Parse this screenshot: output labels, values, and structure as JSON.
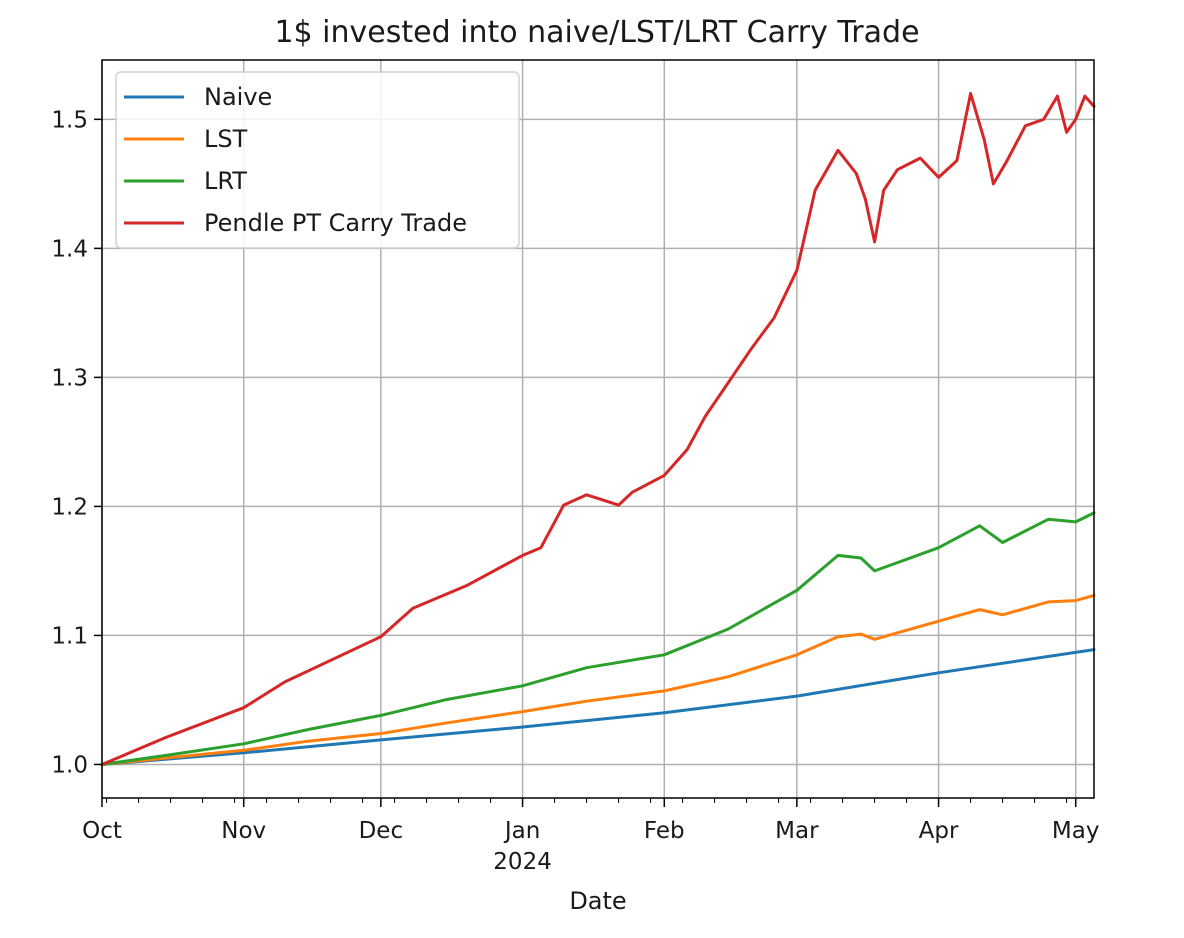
{
  "chart_data": {
    "type": "line",
    "title": "1$ invested into naive/LST/LRT Carry Trade",
    "xlabel": "Date",
    "ylabel": "",
    "x_start": "2023-10-01",
    "x_end": "2024-05-05",
    "xlim": [
      "2023-10-01",
      "2024-05-05"
    ],
    "ylim": [
      0.974,
      1.546
    ],
    "x_ticks": [
      {
        "date": "2023-10-01",
        "label": "Oct",
        "sublabel": ""
      },
      {
        "date": "2023-11-01",
        "label": "Nov",
        "sublabel": ""
      },
      {
        "date": "2023-12-01",
        "label": "Dec",
        "sublabel": ""
      },
      {
        "date": "2024-01-01",
        "label": "Jan",
        "sublabel": "2024"
      },
      {
        "date": "2024-02-01",
        "label": "Feb",
        "sublabel": ""
      },
      {
        "date": "2024-03-01",
        "label": "Mar",
        "sublabel": ""
      },
      {
        "date": "2024-04-01",
        "label": "Apr",
        "sublabel": ""
      },
      {
        "date": "2024-05-01",
        "label": "May",
        "sublabel": ""
      }
    ],
    "y_ticks": [
      1.0,
      1.1,
      1.2,
      1.3,
      1.4,
      1.5
    ],
    "y_tick_labels": [
      "1.0",
      "1.1",
      "1.2",
      "1.3",
      "1.4",
      "1.5"
    ],
    "grid": true,
    "legend_position": "top-left",
    "series": [
      {
        "name": "Naive",
        "color": "#1f77b4",
        "x": [
          "2023-10-01",
          "2023-11-01",
          "2023-12-01",
          "2024-01-01",
          "2024-02-01",
          "2024-03-01",
          "2024-04-01",
          "2024-05-05"
        ],
        "y": [
          1.0,
          1.009,
          1.019,
          1.029,
          1.04,
          1.053,
          1.071,
          1.089
        ]
      },
      {
        "name": "LST",
        "color": "#ff7f0e",
        "x": [
          "2023-10-01",
          "2023-10-15",
          "2023-11-01",
          "2023-11-15",
          "2023-12-01",
          "2023-12-15",
          "2024-01-01",
          "2024-01-15",
          "2024-02-01",
          "2024-02-15",
          "2024-03-01",
          "2024-03-10",
          "2024-03-15",
          "2024-03-18",
          "2024-04-01",
          "2024-04-10",
          "2024-04-15",
          "2024-04-25",
          "2024-05-01",
          "2024-05-05"
        ],
        "y": [
          1.0,
          1.005,
          1.011,
          1.018,
          1.024,
          1.032,
          1.041,
          1.049,
          1.057,
          1.068,
          1.085,
          1.099,
          1.101,
          1.097,
          1.111,
          1.12,
          1.116,
          1.126,
          1.127,
          1.131
        ]
      },
      {
        "name": "LRT",
        "color": "#2ca02c",
        "x": [
          "2023-10-01",
          "2023-10-15",
          "2023-11-01",
          "2023-11-15",
          "2023-12-01",
          "2023-12-15",
          "2024-01-01",
          "2024-01-15",
          "2024-02-01",
          "2024-02-15",
          "2024-03-01",
          "2024-03-10",
          "2024-03-15",
          "2024-03-18",
          "2024-04-01",
          "2024-04-10",
          "2024-04-15",
          "2024-04-25",
          "2024-05-01",
          "2024-05-05"
        ],
        "y": [
          1.0,
          1.007,
          1.016,
          1.027,
          1.038,
          1.05,
          1.061,
          1.075,
          1.085,
          1.105,
          1.135,
          1.162,
          1.16,
          1.15,
          1.168,
          1.185,
          1.172,
          1.19,
          1.188,
          1.195
        ]
      },
      {
        "name": "Pendle PT Carry Trade",
        "color": "#d62728",
        "x": [
          "2023-10-01",
          "2023-10-15",
          "2023-11-01",
          "2023-11-10",
          "2023-12-01",
          "2023-12-08",
          "2023-12-20",
          "2024-01-01",
          "2024-01-05",
          "2024-01-10",
          "2024-01-15",
          "2024-01-22",
          "2024-01-25",
          "2024-02-01",
          "2024-02-06",
          "2024-02-10",
          "2024-02-15",
          "2024-02-20",
          "2024-02-25",
          "2024-03-01",
          "2024-03-05",
          "2024-03-10",
          "2024-03-14",
          "2024-03-16",
          "2024-03-18",
          "2024-03-20",
          "2024-03-23",
          "2024-03-28",
          "2024-04-01",
          "2024-04-05",
          "2024-04-08",
          "2024-04-11",
          "2024-04-13",
          "2024-04-16",
          "2024-04-20",
          "2024-04-24",
          "2024-04-27",
          "2024-04-29",
          "2024-05-01",
          "2024-05-03",
          "2024-05-05"
        ],
        "y": [
          1.0,
          1.021,
          1.044,
          1.064,
          1.099,
          1.121,
          1.139,
          1.162,
          1.168,
          1.201,
          1.209,
          1.201,
          1.211,
          1.224,
          1.244,
          1.27,
          1.296,
          1.322,
          1.346,
          1.383,
          1.445,
          1.476,
          1.458,
          1.438,
          1.405,
          1.445,
          1.461,
          1.47,
          1.455,
          1.468,
          1.52,
          1.484,
          1.45,
          1.468,
          1.495,
          1.5,
          1.518,
          1.49,
          1.5,
          1.518,
          1.51
        ]
      }
    ]
  }
}
